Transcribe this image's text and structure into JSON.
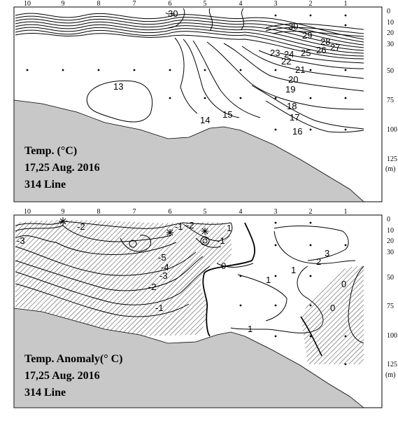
{
  "panels": [
    {
      "id": "temp",
      "title_lines": [
        "Temp. (°C)",
        "17,25 Aug. 2016",
        "314 Line"
      ],
      "station_labels": [
        "10",
        "9",
        "8",
        "7",
        "6",
        "5",
        "4",
        "3",
        "2",
        "1"
      ],
      "depth_labels": [
        "0",
        "10",
        "20",
        "30",
        "50",
        "75",
        "100",
        "125",
        "(m)"
      ],
      "contour_labels": [
        "30",
        "30",
        "29",
        "28",
        "27",
        "26",
        "25",
        "24",
        "23",
        "22",
        "21",
        "20",
        "19",
        "18",
        "17",
        "16",
        "15",
        "14",
        "13"
      ]
    },
    {
      "id": "anomaly",
      "title_lines": [
        "Temp. Anomaly(° C)",
        "17,25 Aug. 2016",
        "314 Line"
      ],
      "station_labels": [
        "10",
        "9",
        "8",
        "7",
        "6",
        "5",
        "4",
        "3",
        "2",
        "1"
      ],
      "depth_labels": [
        "0",
        "10",
        "20",
        "30",
        "50",
        "75",
        "100",
        "125",
        "(m)"
      ],
      "contour_labels": [
        "-3",
        "-2",
        "-1",
        "-5",
        "-4",
        "-3",
        "-2",
        "-1",
        "-1",
        "-2",
        "1",
        "0",
        "3",
        "2",
        "1",
        "1",
        "0",
        "0",
        "1"
      ]
    }
  ],
  "colors": {
    "seafloor": "#c8c8c8",
    "line": "#000000",
    "hatch": "#000000"
  }
}
